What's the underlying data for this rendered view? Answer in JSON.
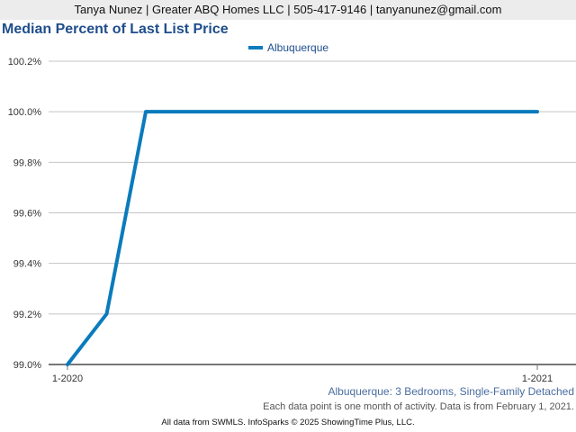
{
  "header": {
    "contact": "Tanya Nunez | Greater ABQ Homes LLC | 505-417-9146 | tanyanunez@gmail.com"
  },
  "chart_data": {
    "type": "line",
    "title": "Median Percent of Last List Price",
    "xlabel": "",
    "ylabel": "",
    "x": [
      "1-2020",
      "2-2020",
      "3-2020",
      "4-2020",
      "5-2020",
      "6-2020",
      "7-2020",
      "8-2020",
      "9-2020",
      "10-2020",
      "11-2020",
      "12-2020",
      "1-2021"
    ],
    "x_tick_labels": [
      "1-2020",
      "1-2021"
    ],
    "series": [
      {
        "name": "Albuquerque",
        "color": "#0a7bbd",
        "values": [
          99.0,
          99.2,
          100.0,
          100.0,
          100.0,
          100.0,
          100.0,
          100.0,
          100.0,
          100.0,
          100.0,
          100.0,
          100.0
        ]
      }
    ],
    "ylim": [
      99.0,
      100.2
    ],
    "y_ticks": [
      99.0,
      99.2,
      99.4,
      99.6,
      99.8,
      100.0,
      100.2
    ],
    "y_tick_labels": [
      "99.0%",
      "99.2%",
      "99.4%",
      "99.6%",
      "99.8%",
      "100.0%",
      "100.2%"
    ],
    "grid": true,
    "legend": "top-center"
  },
  "caption": "Albuquerque: 3 Bedrooms, Single-Family Detached",
  "note": "Each data point is one month of activity. Data is from February 1, 2021.",
  "footer": "All data from SWMLS. InfoSparks © 2025 ShowingTime Plus, LLC."
}
